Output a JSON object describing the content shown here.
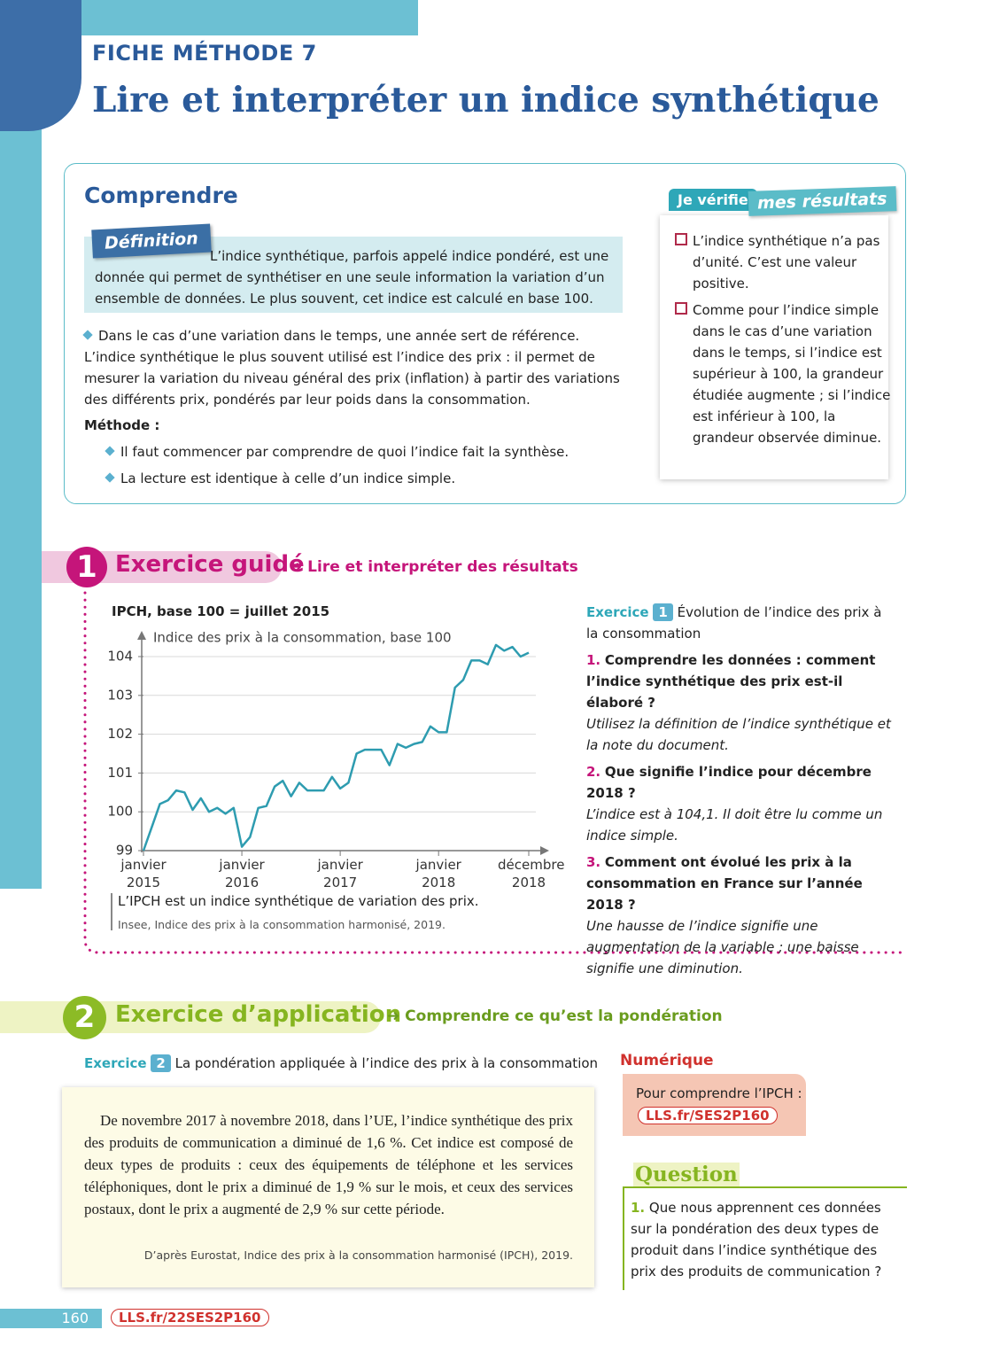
{
  "header": {
    "label": "FICHE MÉTHODE 7",
    "title": "Lire et interpréter un indice synthétique"
  },
  "comprendre": {
    "title": "Comprendre",
    "definition_tag": "Définition",
    "definition": "L’indice synthétique, parfois appelé indice pondéré, est une donnée qui permet de synthétiser en une seule information la variation d’un ensemble de données. Le plus souvent, cet indice est calculé en base 100.",
    "bullet": "Dans le cas d’une variation dans le temps, une année sert de référence. L’indice synthétique le plus souvent utilisé est l’indice des prix : il permet de mesurer la variation du niveau général des prix (inflation) à partir des variations des différents prix, pondérés par leur poids dans la consommation.",
    "methode_label": "Méthode :",
    "methode_items": [
      "Il faut commencer par comprendre de quoi l’indice fait la synthèse.",
      "La lecture est identique à celle d’un indice simple."
    ]
  },
  "verifie": {
    "tag1": "Je vérifie",
    "tag2": "mes résultats",
    "items": [
      "L’indice synthétique n’a pas d’unité. C’est une valeur positive.",
      "Comme pour l’indice simple dans le cas d’une variation dans le temps, si l’indice est supérieur à 100, la grandeur étudiée augmente ; si l’indice est inférieur à 100, la grandeur observée diminue."
    ]
  },
  "exercise1": {
    "number": "1",
    "title": "Exercice guidé",
    "subtitle": "Lire et interpréter des résultats",
    "label": "Exercice",
    "label_number": "1",
    "intro": "Évolution de l’indice des prix à la consommation",
    "questions": [
      {
        "num": "1.",
        "question": "Comprendre les données : comment l’indice synthétique des prix est-il élaboré ?",
        "hint": "Utilisez la définition de l’indice synthétique et la note du document."
      },
      {
        "num": "2.",
        "question": "Que signifie l’indice pour décembre 2018 ?",
        "hint": "L’indice est à 104,1. Il doit être lu comme un indice simple."
      },
      {
        "num": "3.",
        "question": "Comment ont évolué les prix à la consommation en France sur l’année 2018 ?",
        "hint": "Une hausse de l’indice signifie une augmentation de la variable ; une baisse signifie une diminution."
      }
    ],
    "caption": "L’IPCH est un indice synthétique de variation des prix.",
    "source": "Insee, Indice des prix à la consommation harmonisé, 2019."
  },
  "chart_data": {
    "type": "line",
    "title": "IPCH, base 100 = juillet 2015",
    "y_label": "Indice des prix à la consommation, base 100",
    "categories": [
      "janvier 2015",
      null,
      null,
      null,
      null,
      null,
      null,
      null,
      null,
      null,
      null,
      null,
      "janvier 2016",
      null,
      null,
      null,
      null,
      null,
      null,
      null,
      null,
      null,
      null,
      null,
      "janvier 2017",
      null,
      null,
      null,
      null,
      null,
      null,
      null,
      null,
      null,
      null,
      null,
      "janvier 2018",
      null,
      null,
      null,
      null,
      null,
      null,
      null,
      null,
      null,
      null,
      "décembre 2018"
    ],
    "values": [
      99.0,
      99.6,
      100.2,
      100.3,
      100.55,
      100.5,
      100.05,
      100.35,
      100.0,
      100.1,
      99.95,
      100.1,
      99.1,
      99.35,
      100.1,
      100.15,
      100.65,
      100.8,
      100.4,
      100.75,
      100.55,
      100.55,
      100.55,
      100.9,
      100.6,
      100.75,
      101.5,
      101.6,
      101.6,
      101.6,
      101.2,
      101.75,
      101.65,
      101.75,
      101.8,
      102.2,
      102.05,
      102.05,
      103.2,
      103.4,
      103.9,
      103.9,
      103.8,
      104.3,
      104.15,
      104.25,
      104.0,
      104.1
    ],
    "color": "#2e9cb0",
    "ylim": [
      99,
      104.4
    ],
    "yticks": [
      99,
      100,
      101,
      102,
      103,
      104
    ],
    "grid": true
  },
  "exercise2": {
    "number": "2",
    "title": "Exercice d’application",
    "subtitle": "Comprendre ce qu’est la pondération",
    "label": "Exercice",
    "label_number": "2",
    "intro": "La pondération appliquée à l’indice des prix à la consommation",
    "text": "De novembre 2017 à novembre 2018, dans l’UE, l’indice synthétique des prix des produits de communication a diminué de 1,6 %. Cet indice est composé de deux types de produits : ceux des équipements de téléphone et les services téléphoniques, dont le prix a diminué de 1,9 % sur le mois, et ceux des services postaux, dont le prix a augmenté de 2,9 % sur cette période.",
    "source": "D’après Eurostat, Indice des prix à la consommation harmonisé (IPCH), 2019."
  },
  "numerique": {
    "title": "Numérique",
    "text": "Pour comprendre l’IPCH :",
    "link": "LLS.fr/SES2P160"
  },
  "question": {
    "title": "Question",
    "items": [
      {
        "num": "1.",
        "text": "Que nous apprennent ces données sur la pondération des deux types de produit dans l’indice synthétique des prix des produits de communication ?"
      }
    ]
  },
  "footer": {
    "page": "160",
    "link": "LLS.fr/22SES2P160"
  }
}
